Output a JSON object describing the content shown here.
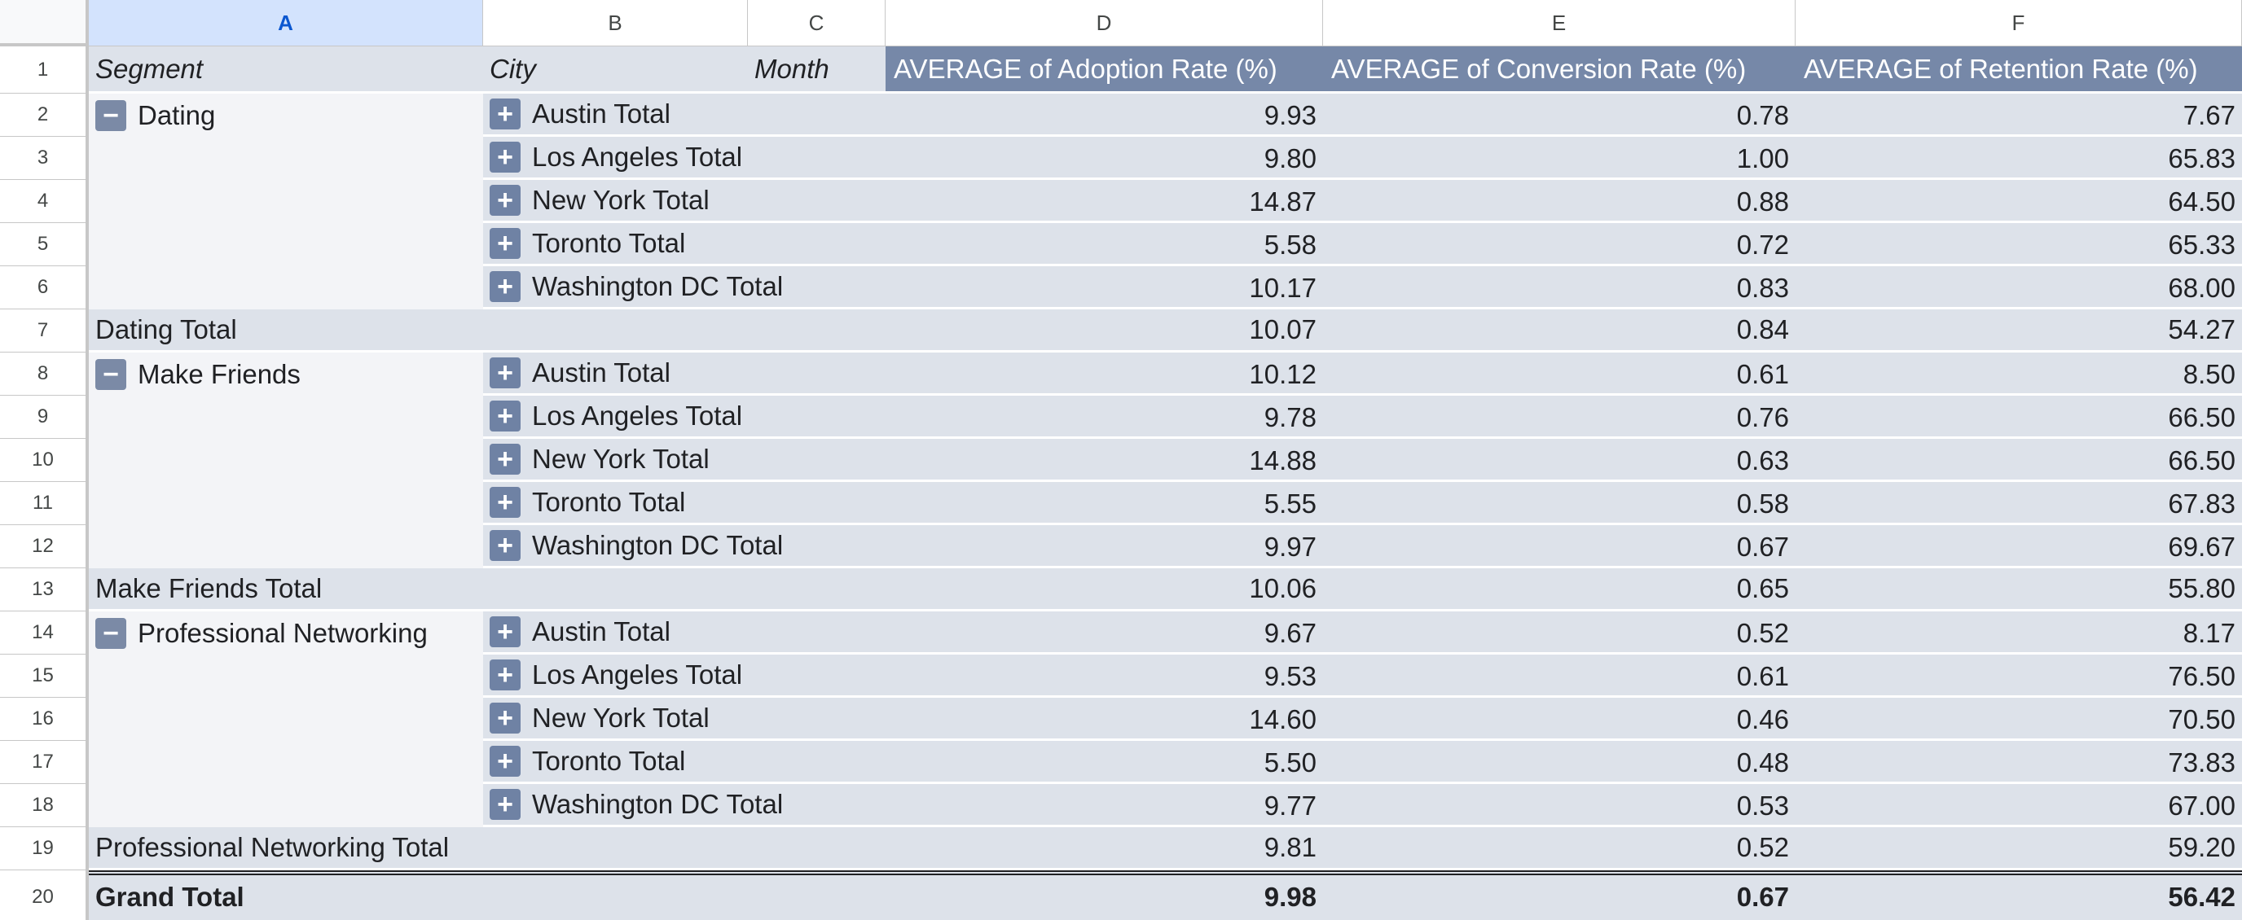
{
  "columns": [
    "A",
    "B",
    "C",
    "D",
    "E",
    "F"
  ],
  "row_numbers": [
    "1",
    "2",
    "3",
    "4",
    "5",
    "6",
    "7",
    "8",
    "9",
    "10",
    "11",
    "12",
    "13",
    "14",
    "15",
    "16",
    "17",
    "18",
    "19",
    "20"
  ],
  "header": {
    "segment": "Segment",
    "city": "City",
    "month": "Month",
    "adoption": "AVERAGE of Adoption Rate (%)",
    "conversion": "AVERAGE of Conversion Rate (%)",
    "retention": "AVERAGE of Retention Rate (%)"
  },
  "expand_symbol": "+",
  "collapse_symbol": "−",
  "groups": [
    {
      "segment": "Dating",
      "cities": [
        {
          "city": "Austin Total",
          "adoption": "9.93",
          "conversion": "0.78",
          "retention": "7.67"
        },
        {
          "city": "Los Angeles Total",
          "adoption": "9.80",
          "conversion": "1.00",
          "retention": "65.83"
        },
        {
          "city": "New York Total",
          "adoption": "14.87",
          "conversion": "0.88",
          "retention": "64.50"
        },
        {
          "city": "Toronto Total",
          "adoption": "5.58",
          "conversion": "0.72",
          "retention": "65.33"
        },
        {
          "city": "Washington DC Total",
          "adoption": "10.17",
          "conversion": "0.83",
          "retention": "68.00"
        }
      ],
      "total": {
        "label": "Dating Total",
        "adoption": "10.07",
        "conversion": "0.84",
        "retention": "54.27"
      }
    },
    {
      "segment": "Make Friends",
      "cities": [
        {
          "city": "Austin Total",
          "adoption": "10.12",
          "conversion": "0.61",
          "retention": "8.50"
        },
        {
          "city": "Los Angeles Total",
          "adoption": "9.78",
          "conversion": "0.76",
          "retention": "66.50"
        },
        {
          "city": "New York Total",
          "adoption": "14.88",
          "conversion": "0.63",
          "retention": "66.50"
        },
        {
          "city": "Toronto Total",
          "adoption": "5.55",
          "conversion": "0.58",
          "retention": "67.83"
        },
        {
          "city": "Washington DC Total",
          "adoption": "9.97",
          "conversion": "0.67",
          "retention": "69.67"
        }
      ],
      "total": {
        "label": "Make Friends Total",
        "adoption": "10.06",
        "conversion": "0.65",
        "retention": "55.80"
      }
    },
    {
      "segment": "Professional Networking",
      "cities": [
        {
          "city": "Austin Total",
          "adoption": "9.67",
          "conversion": "0.52",
          "retention": "8.17"
        },
        {
          "city": "Los Angeles Total",
          "adoption": "9.53",
          "conversion": "0.61",
          "retention": "76.50"
        },
        {
          "city": "New York Total",
          "adoption": "14.60",
          "conversion": "0.46",
          "retention": "70.50"
        },
        {
          "city": "Toronto Total",
          "adoption": "5.50",
          "conversion": "0.48",
          "retention": "73.83"
        },
        {
          "city": "Washington DC Total",
          "adoption": "9.77",
          "conversion": "0.53",
          "retention": "67.00"
        }
      ],
      "total": {
        "label": "Professional Networking Total",
        "adoption": "9.81",
        "conversion": "0.52",
        "retention": "59.20"
      }
    }
  ],
  "grand_total": {
    "label": "Grand Total",
    "adoption": "9.98",
    "conversion": "0.67",
    "retention": "56.42"
  },
  "colors": {
    "header_fill": "#7688a8",
    "band_fill": "#dde2ea",
    "selected_column": "#d3e3fd",
    "button_fill": "#6f82a4"
  }
}
